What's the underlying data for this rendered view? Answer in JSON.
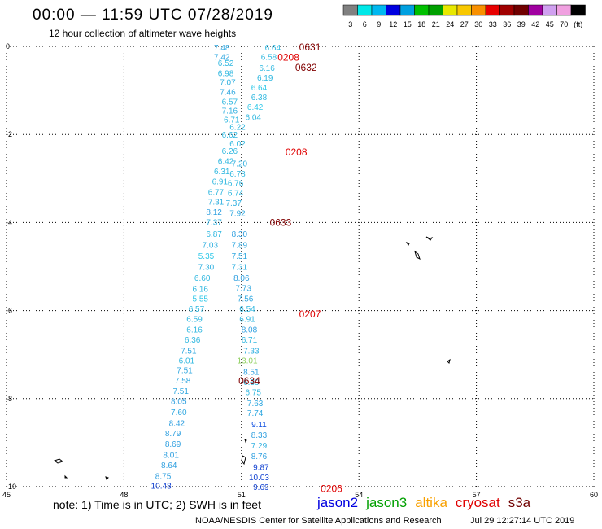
{
  "header": {
    "title": "00:00 — 11:59 UTC 07/28/2019",
    "subtitle": "12 hour collection of altimeter wave heights"
  },
  "legend": {
    "colors": [
      "#808080",
      "#00e8e8",
      "#00b8f0",
      "#0000e0",
      "#00a0e0",
      "#00c000",
      "#00a000",
      "#e8e800",
      "#f8c800",
      "#f89000",
      "#e80000",
      "#a00000",
      "#700000",
      "#a000a0",
      "#d0a0f0",
      "#f0a0e0",
      "#000000"
    ],
    "labels": [
      "3",
      "6",
      "9",
      "12",
      "15",
      "18",
      "21",
      "24",
      "27",
      "30",
      "33",
      "36",
      "39",
      "42",
      "45",
      "70",
      "(ft)"
    ]
  },
  "axes": {
    "x_ticks": [
      "45",
      "48",
      "51",
      "54",
      "57",
      "60"
    ],
    "y_ticks": [
      "0",
      "-2",
      "-4",
      "-6",
      "-8",
      "-10"
    ]
  },
  "map_data": {
    "track_left": [
      {
        "v": "7.48",
        "lat": -0.02,
        "lon": 50.5,
        "c": "#30a8e0"
      },
      {
        "v": "7.42",
        "lat": -0.23,
        "lon": 50.5,
        "c": "#30a8e0"
      },
      {
        "v": "6.52",
        "lat": -0.37,
        "lon": 50.6,
        "c": "#30b8e0"
      },
      {
        "v": "6.98",
        "lat": -0.6,
        "lon": 50.6,
        "c": "#30b8e0"
      },
      {
        "v": "7.07",
        "lat": -0.8,
        "lon": 50.65,
        "c": "#30b0e0"
      },
      {
        "v": "7.46",
        "lat": -1.03,
        "lon": 50.65,
        "c": "#30a8e0"
      },
      {
        "v": "6.57",
        "lat": -1.25,
        "lon": 50.7,
        "c": "#30b8e0"
      },
      {
        "v": "7.16",
        "lat": -1.45,
        "lon": 50.7,
        "c": "#30b0e0"
      },
      {
        "v": "6.71",
        "lat": -1.65,
        "lon": 50.75,
        "c": "#30b8e0"
      },
      {
        "v": "6.62",
        "lat": -2.0,
        "lon": 50.7,
        "c": "#30b8e0"
      },
      {
        "v": "6.26",
        "lat": -2.37,
        "lon": 50.7,
        "c": "#30b8e0"
      },
      {
        "v": "6.42",
        "lat": -2.6,
        "lon": 50.6,
        "c": "#30b8e0"
      },
      {
        "v": "6.31",
        "lat": -2.83,
        "lon": 50.5,
        "c": "#30b8e0"
      },
      {
        "v": "6.91",
        "lat": -3.06,
        "lon": 50.45,
        "c": "#30b8e0"
      },
      {
        "v": "6.77",
        "lat": -3.3,
        "lon": 50.35,
        "c": "#30b8e0"
      },
      {
        "v": "7.31",
        "lat": -3.52,
        "lon": 50.35,
        "c": "#30b0e0"
      },
      {
        "v": "8.12",
        "lat": -3.75,
        "lon": 50.3,
        "c": "#30a0e0"
      },
      {
        "v": "7.37",
        "lat": -3.98,
        "lon": 50.3,
        "c": "#30b0e0"
      },
      {
        "v": "6.87",
        "lat": -4.25,
        "lon": 50.3,
        "c": "#30b8e0"
      },
      {
        "v": "7.03",
        "lat": -4.5,
        "lon": 50.2,
        "c": "#30b0e0"
      },
      {
        "v": "5.35",
        "lat": -4.75,
        "lon": 50.1,
        "c": "#30c8e8"
      },
      {
        "v": "7.30",
        "lat": -5.0,
        "lon": 50.1,
        "c": "#30b0e0"
      },
      {
        "v": "6.60",
        "lat": -5.25,
        "lon": 50.0,
        "c": "#30b8e0"
      },
      {
        "v": "6.16",
        "lat": -5.5,
        "lon": 49.95,
        "c": "#30b8e0"
      },
      {
        "v": "5.55",
        "lat": -5.72,
        "lon": 49.95,
        "c": "#30c8e8"
      },
      {
        "v": "6.57",
        "lat": -5.95,
        "lon": 49.85,
        "c": "#30b8e0"
      },
      {
        "v": "6.59",
        "lat": -6.18,
        "lon": 49.8,
        "c": "#30b8e0"
      },
      {
        "v": "6.16",
        "lat": -6.42,
        "lon": 49.8,
        "c": "#30b8e0"
      },
      {
        "v": "6.36",
        "lat": -6.65,
        "lon": 49.75,
        "c": "#30b8e0"
      },
      {
        "v": "7.51",
        "lat": -6.9,
        "lon": 49.65,
        "c": "#30a8e0"
      },
      {
        "v": "6.01",
        "lat": -7.13,
        "lon": 49.6,
        "c": "#30b8e0"
      },
      {
        "v": "7.51",
        "lat": -7.35,
        "lon": 49.55,
        "c": "#30a8e0"
      },
      {
        "v": "7.58",
        "lat": -7.58,
        "lon": 49.5,
        "c": "#30a8e0"
      },
      {
        "v": "7.51",
        "lat": -7.82,
        "lon": 49.45,
        "c": "#30a8e0"
      },
      {
        "v": "8.05",
        "lat": -8.05,
        "lon": 49.4,
        "c": "#30a0e0"
      },
      {
        "v": "7.60",
        "lat": -8.3,
        "lon": 49.4,
        "c": "#30a8e0"
      },
      {
        "v": "8.42",
        "lat": -8.55,
        "lon": 49.35,
        "c": "#30a0e0"
      },
      {
        "v": "8.79",
        "lat": -8.78,
        "lon": 49.25,
        "c": "#30a0e0"
      },
      {
        "v": "8.69",
        "lat": -9.02,
        "lon": 49.25,
        "c": "#30a0e0"
      },
      {
        "v": "8.01",
        "lat": -9.27,
        "lon": 49.2,
        "c": "#30a0e0"
      },
      {
        "v": "8.64",
        "lat": -9.5,
        "lon": 49.15,
        "c": "#30a0e0"
      },
      {
        "v": "8.75",
        "lat": -9.75,
        "lon": 49.0,
        "c": "#30a0e0"
      },
      {
        "v": "10.48",
        "lat": -9.97,
        "lon": 48.95,
        "c": "#1040d0"
      }
    ],
    "track_right": [
      {
        "v": "6.64",
        "lat": -0.02,
        "lon": 51.8,
        "c": "#30b8e0"
      },
      {
        "v": "6.58",
        "lat": -0.23,
        "lon": 51.7,
        "c": "#30b8e0"
      },
      {
        "v": "6.16",
        "lat": -0.48,
        "lon": 51.65,
        "c": "#30b8e0"
      },
      {
        "v": "6.19",
        "lat": -0.7,
        "lon": 51.6,
        "c": "#30b8e0"
      },
      {
        "v": "6.64",
        "lat": -0.92,
        "lon": 51.45,
        "c": "#30c8e8"
      },
      {
        "v": "6.38",
        "lat": -1.15,
        "lon": 51.45,
        "c": "#30b8e0"
      },
      {
        "v": "6.42",
        "lat": -1.37,
        "lon": 51.35,
        "c": "#30c8e8"
      },
      {
        "v": "6.04",
        "lat": -1.6,
        "lon": 51.3,
        "c": "#30b8e0"
      },
      {
        "v": "6.22",
        "lat": -1.82,
        "lon": 50.9,
        "c": "#30b8e0"
      },
      {
        "v": "6.02",
        "lat": -2.2,
        "lon": 50.9,
        "c": "#30b8e0"
      },
      {
        "v": "7.20",
        "lat": -2.65,
        "lon": 50.95,
        "c": "#30b0e0"
      },
      {
        "v": "6.78",
        "lat": -2.88,
        "lon": 50.9,
        "c": "#30b8e0"
      },
      {
        "v": "6.76",
        "lat": -3.1,
        "lon": 50.85,
        "c": "#30b8e0"
      },
      {
        "v": "6.74",
        "lat": -3.32,
        "lon": 50.85,
        "c": "#30b8e0"
      },
      {
        "v": "7.37",
        "lat": -3.55,
        "lon": 50.8,
        "c": "#30b0e0"
      },
      {
        "v": "7.92",
        "lat": -3.78,
        "lon": 50.9,
        "c": "#30a8e0"
      },
      {
        "v": "8.30",
        "lat": -4.25,
        "lon": 50.95,
        "c": "#30a0e0"
      },
      {
        "v": "7.89",
        "lat": -4.5,
        "lon": 50.95,
        "c": "#30a8e0"
      },
      {
        "v": "7.51",
        "lat": -4.75,
        "lon": 50.95,
        "c": "#30a8e0"
      },
      {
        "v": "7.31",
        "lat": -5.0,
        "lon": 50.95,
        "c": "#30b0e0"
      },
      {
        "v": "8.06",
        "lat": -5.25,
        "lon": 51.0,
        "c": "#30a0e0"
      },
      {
        "v": "7.73",
        "lat": -5.48,
        "lon": 51.05,
        "c": "#30a8e0"
      },
      {
        "v": "7.56",
        "lat": -5.72,
        "lon": 51.1,
        "c": "#30a8e0"
      },
      {
        "v": "6.54",
        "lat": -5.95,
        "lon": 51.15,
        "c": "#30b8e0"
      },
      {
        "v": "6.91",
        "lat": -6.18,
        "lon": 51.15,
        "c": "#30b8e0"
      },
      {
        "v": "8.08",
        "lat": -6.42,
        "lon": 51.2,
        "c": "#30a0e0"
      },
      {
        "v": "6.71",
        "lat": -6.65,
        "lon": 51.2,
        "c": "#30b8e0"
      },
      {
        "v": "7.33",
        "lat": -6.9,
        "lon": 51.25,
        "c": "#30b0e0"
      },
      {
        "v": "13.01",
        "lat": -7.13,
        "lon": 51.15,
        "c": "#90d060"
      },
      {
        "v": "8.51",
        "lat": -7.38,
        "lon": 51.25,
        "c": "#30a0e0"
      },
      {
        "v": "6.89",
        "lat": -7.62,
        "lon": 51.25,
        "c": "#30b8e0"
      },
      {
        "v": "6.75",
        "lat": -7.85,
        "lon": 51.3,
        "c": "#30b8e0"
      },
      {
        "v": "7.63",
        "lat": -8.1,
        "lon": 51.35,
        "c": "#30a8e0"
      },
      {
        "v": "7.74",
        "lat": -8.32,
        "lon": 51.35,
        "c": "#30a8e0"
      },
      {
        "v": "9.11",
        "lat": -8.58,
        "lon": 51.45,
        "c": "#1050e0"
      },
      {
        "v": "8.33",
        "lat": -8.82,
        "lon": 51.45,
        "c": "#30a0e0"
      },
      {
        "v": "7.29",
        "lat": -9.06,
        "lon": 51.45,
        "c": "#30b0e0"
      },
      {
        "v": "8.76",
        "lat": -9.3,
        "lon": 51.45,
        "c": "#30a0e0"
      },
      {
        "v": "9.87",
        "lat": -9.55,
        "lon": 51.5,
        "c": "#1040d0"
      },
      {
        "v": "10.03",
        "lat": -9.78,
        "lon": 51.45,
        "c": "#1040d0"
      },
      {
        "v": "9.69",
        "lat": -10.0,
        "lon": 51.5,
        "c": "#1040d0"
      }
    ],
    "time_labels": [
      {
        "v": "0631",
        "lat": -0.02,
        "lon": 52.75,
        "c": "#800000"
      },
      {
        "v": "0208",
        "lat": -0.25,
        "lon": 52.2,
        "c": "#e00000"
      },
      {
        "v": "0632",
        "lat": -0.48,
        "lon": 52.65,
        "c": "#800000"
      },
      {
        "v": "0208",
        "lat": -2.4,
        "lon": 52.4,
        "c": "#e00000"
      },
      {
        "v": "0633",
        "lat": -4.0,
        "lon": 52.0,
        "c": "#800000"
      },
      {
        "v": "0207",
        "lat": -6.08,
        "lon": 52.75,
        "c": "#e00000"
      },
      {
        "v": "0634",
        "lat": -7.6,
        "lon": 51.2,
        "c": "#800000"
      },
      {
        "v": "0206",
        "lat": -10.05,
        "lon": 53.3,
        "c": "#e00000"
      }
    ]
  },
  "satellites": [
    {
      "name": "jason2",
      "color": "#0000e0"
    },
    {
      "name": "jason3",
      "color": "#00a000"
    },
    {
      "name": "altika",
      "color": "#f8a000"
    },
    {
      "name": "cryosat",
      "color": "#e00000"
    },
    {
      "name": "s3a",
      "color": "#700000"
    }
  ],
  "footer": {
    "note": "note: 1) Time is in UTC; 2) SWH is in feet",
    "credit": "NOAA/NESDIS Center for Satellite Applications and Research",
    "timestamp": "Jul 29 12:27:14 UTC 2019"
  }
}
